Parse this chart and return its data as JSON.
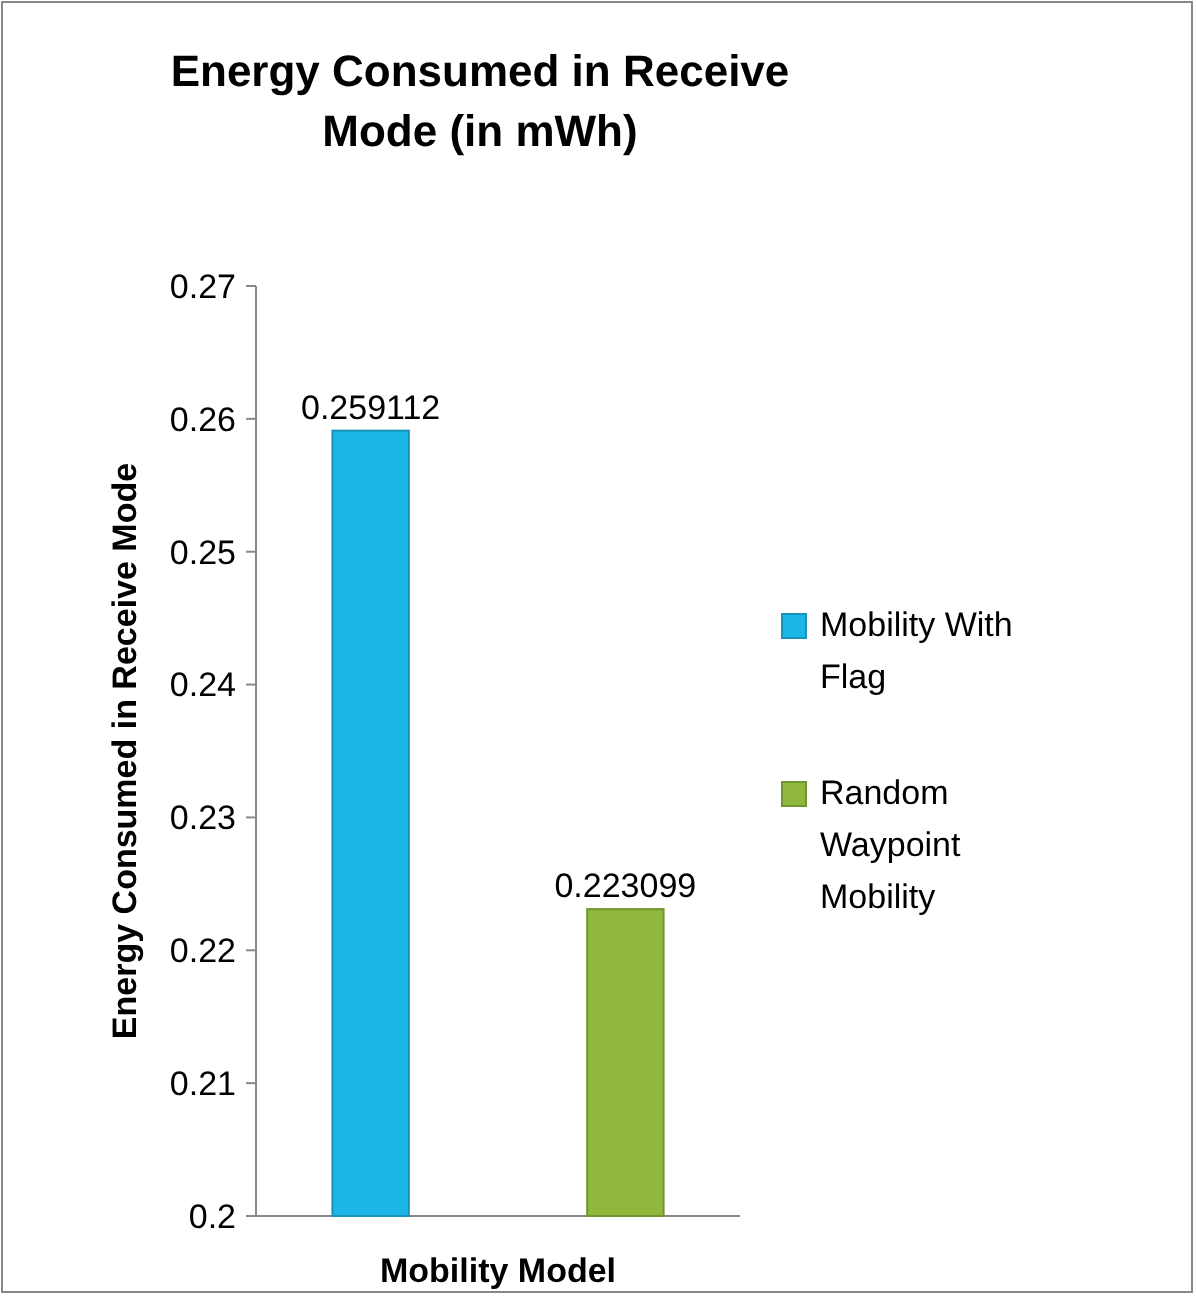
{
  "chart_data": {
    "type": "bar",
    "title": "Energy Consumed in Receive Mode (in mWh)",
    "xlabel": "Mobility Model",
    "ylabel": "Energy Consumed in Receive Mode",
    "categories": [
      null
    ],
    "series": [
      {
        "name": "Mobility With Flag",
        "color": "#1cb6e6",
        "values": [
          0.259112
        ]
      },
      {
        "name": "Random Waypoint Mobility",
        "color": "#8fb83c",
        "values": [
          0.223099
        ]
      }
    ],
    "ylim": [
      0.2,
      0.27
    ],
    "yticks": [
      0.2,
      0.21,
      0.22,
      0.23,
      0.24,
      0.25,
      0.26,
      0.27
    ],
    "data_labels": true,
    "legend": "right",
    "grid": false
  }
}
